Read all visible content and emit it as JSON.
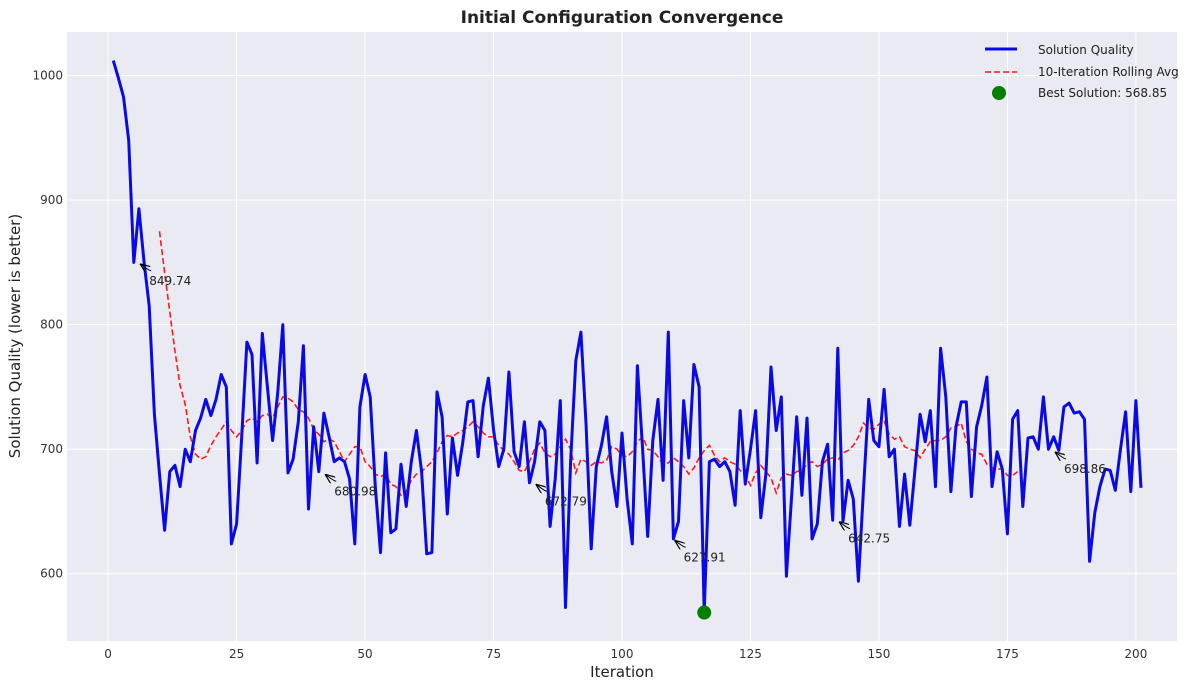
{
  "chart_data": {
    "type": "line",
    "title": "Initial Configuration Convergence",
    "xlabel": "Iteration",
    "ylabel": "Solution Quality (lower is better)",
    "xlim": [
      -8,
      208
    ],
    "ylim": [
      546,
      1035
    ],
    "xticks": [
      0,
      25,
      50,
      75,
      100,
      125,
      150,
      175,
      200
    ],
    "yticks": [
      600,
      700,
      800,
      900,
      1000
    ],
    "grid": true,
    "legend_position": "upper right",
    "colors": {
      "solution": "#0a0ae6",
      "rolling": "#ff1a1a",
      "best": "#008000",
      "plot_bg": "#eaeaf2",
      "grid": "#ffffff"
    },
    "series": [
      {
        "name": "Solution Quality",
        "style": "solid",
        "x_start": 1,
        "values": [
          1012,
          998,
          983,
          948,
          850,
          893,
          850,
          815,
          728,
          680,
          635,
          682,
          687,
          670,
          700,
          690,
          715,
          725,
          740,
          727,
          740,
          760,
          750,
          624,
          640,
          710,
          786,
          776,
          689,
          793,
          750,
          707,
          745,
          800,
          681,
          692,
          722,
          783,
          652,
          718,
          682,
          729,
          710,
          690,
          693,
          690,
          676,
          624,
          734,
          760,
          742,
          670,
          617,
          697,
          633,
          636,
          688,
          654,
          690,
          715,
          682,
          616,
          617,
          746,
          726,
          648,
          709,
          679,
          705,
          738,
          739,
          694,
          735,
          757,
          716,
          686,
          700,
          762,
          698,
          686,
          722,
          673,
          690,
          722,
          715,
          638,
          676,
          739,
          573,
          690,
          771,
          794,
          721,
          620,
          686,
          703,
          726,
          682,
          654,
          713,
          660,
          624,
          767,
          700,
          630,
          707,
          740,
          675,
          794,
          628,
          642,
          739,
          693,
          768,
          750,
          569,
          690,
          692,
          686,
          690,
          682,
          655,
          731,
          672,
          700,
          731,
          645,
          680,
          766,
          715,
          742,
          598,
          662,
          726,
          663,
          725,
          628,
          640,
          690,
          704,
          643,
          781,
          642,
          675,
          660,
          594,
          668,
          740,
          707,
          702,
          748,
          694,
          700,
          638,
          680,
          639,
          683,
          728,
          706,
          731,
          670,
          781,
          742,
          666,
          718,
          738,
          738,
          662,
          718,
          735,
          758,
          670,
          698,
          684,
          632,
          724,
          731,
          654,
          709,
          710,
          700,
          742,
          700,
          710,
          699,
          734,
          737,
          729,
          730,
          724,
          610,
          649,
          670,
          684,
          683,
          667,
          700,
          730,
          666,
          739,
          669
        ]
      },
      {
        "name": "10-Iteration Rolling Avg",
        "style": "dashed",
        "x_start": 10,
        "values": [
          875,
          842,
          810,
          779,
          751,
          736,
          710,
          696,
          692,
          694,
          703,
          710,
          716,
          722,
          715,
          710,
          715,
          723,
          725,
          722,
          727,
          728,
          725,
          734,
          742,
          741,
          738,
          732,
          730,
          725,
          716,
          712,
          706,
          708,
          706,
          698,
          690,
          696,
          702,
          702,
          690,
          686,
          680,
          678,
          680,
          672,
          670,
          663,
          666,
          675,
          680,
          682,
          686,
          690,
          697,
          706,
          711,
          710,
          713,
          715,
          718,
          722,
          718,
          713,
          710,
          710,
          703,
          699,
          696,
          690,
          683,
          682,
          690,
          700,
          705,
          697,
          694,
          696,
          702,
          708,
          700,
          681,
          692,
          690,
          687,
          690,
          689,
          691,
          702,
          700,
          695,
          694,
          698,
          706,
          710,
          700,
          699,
          694,
          688,
          689,
          693,
          690,
          686,
          680,
          685,
          693,
          699,
          703,
          695,
          690,
          693,
          690,
          688,
          683,
          679,
          671,
          681,
          687,
          682,
          677,
          665,
          677,
          680,
          679,
          682,
          683,
          688,
          690,
          686,
          688,
          692,
          693,
          691,
          697,
          699,
          703,
          710,
          721,
          717,
          716,
          720,
          723,
          712,
          708,
          710,
          702,
          700,
          699,
          693,
          700,
          706,
          707,
          707,
          710,
          717,
          718,
          721,
          706,
          700,
          697,
          696,
          688,
          685,
          684,
          684,
          679,
          679,
          682
        ]
      }
    ],
    "best_point": {
      "label": "Best Solution: 568.85",
      "x": 116,
      "y": 568.85
    },
    "annotations": [
      {
        "text": "849.74",
        "x": 6,
        "y": 850,
        "text_x": 8,
        "text_y": 832
      },
      {
        "text": "680.98",
        "x": 42,
        "y": 681,
        "text_x": 44,
        "text_y": 663
      },
      {
        "text": "672.79",
        "x": 83,
        "y": 673,
        "text_x": 85,
        "text_y": 655
      },
      {
        "text": "627.91",
        "x": 110,
        "y": 628,
        "text_x": 112,
        "text_y": 610
      },
      {
        "text": "642.75",
        "x": 142,
        "y": 643,
        "text_x": 144,
        "text_y": 625
      },
      {
        "text": "698.86",
        "x": 184,
        "y": 699,
        "text_x": 186,
        "text_y": 681
      }
    ]
  }
}
